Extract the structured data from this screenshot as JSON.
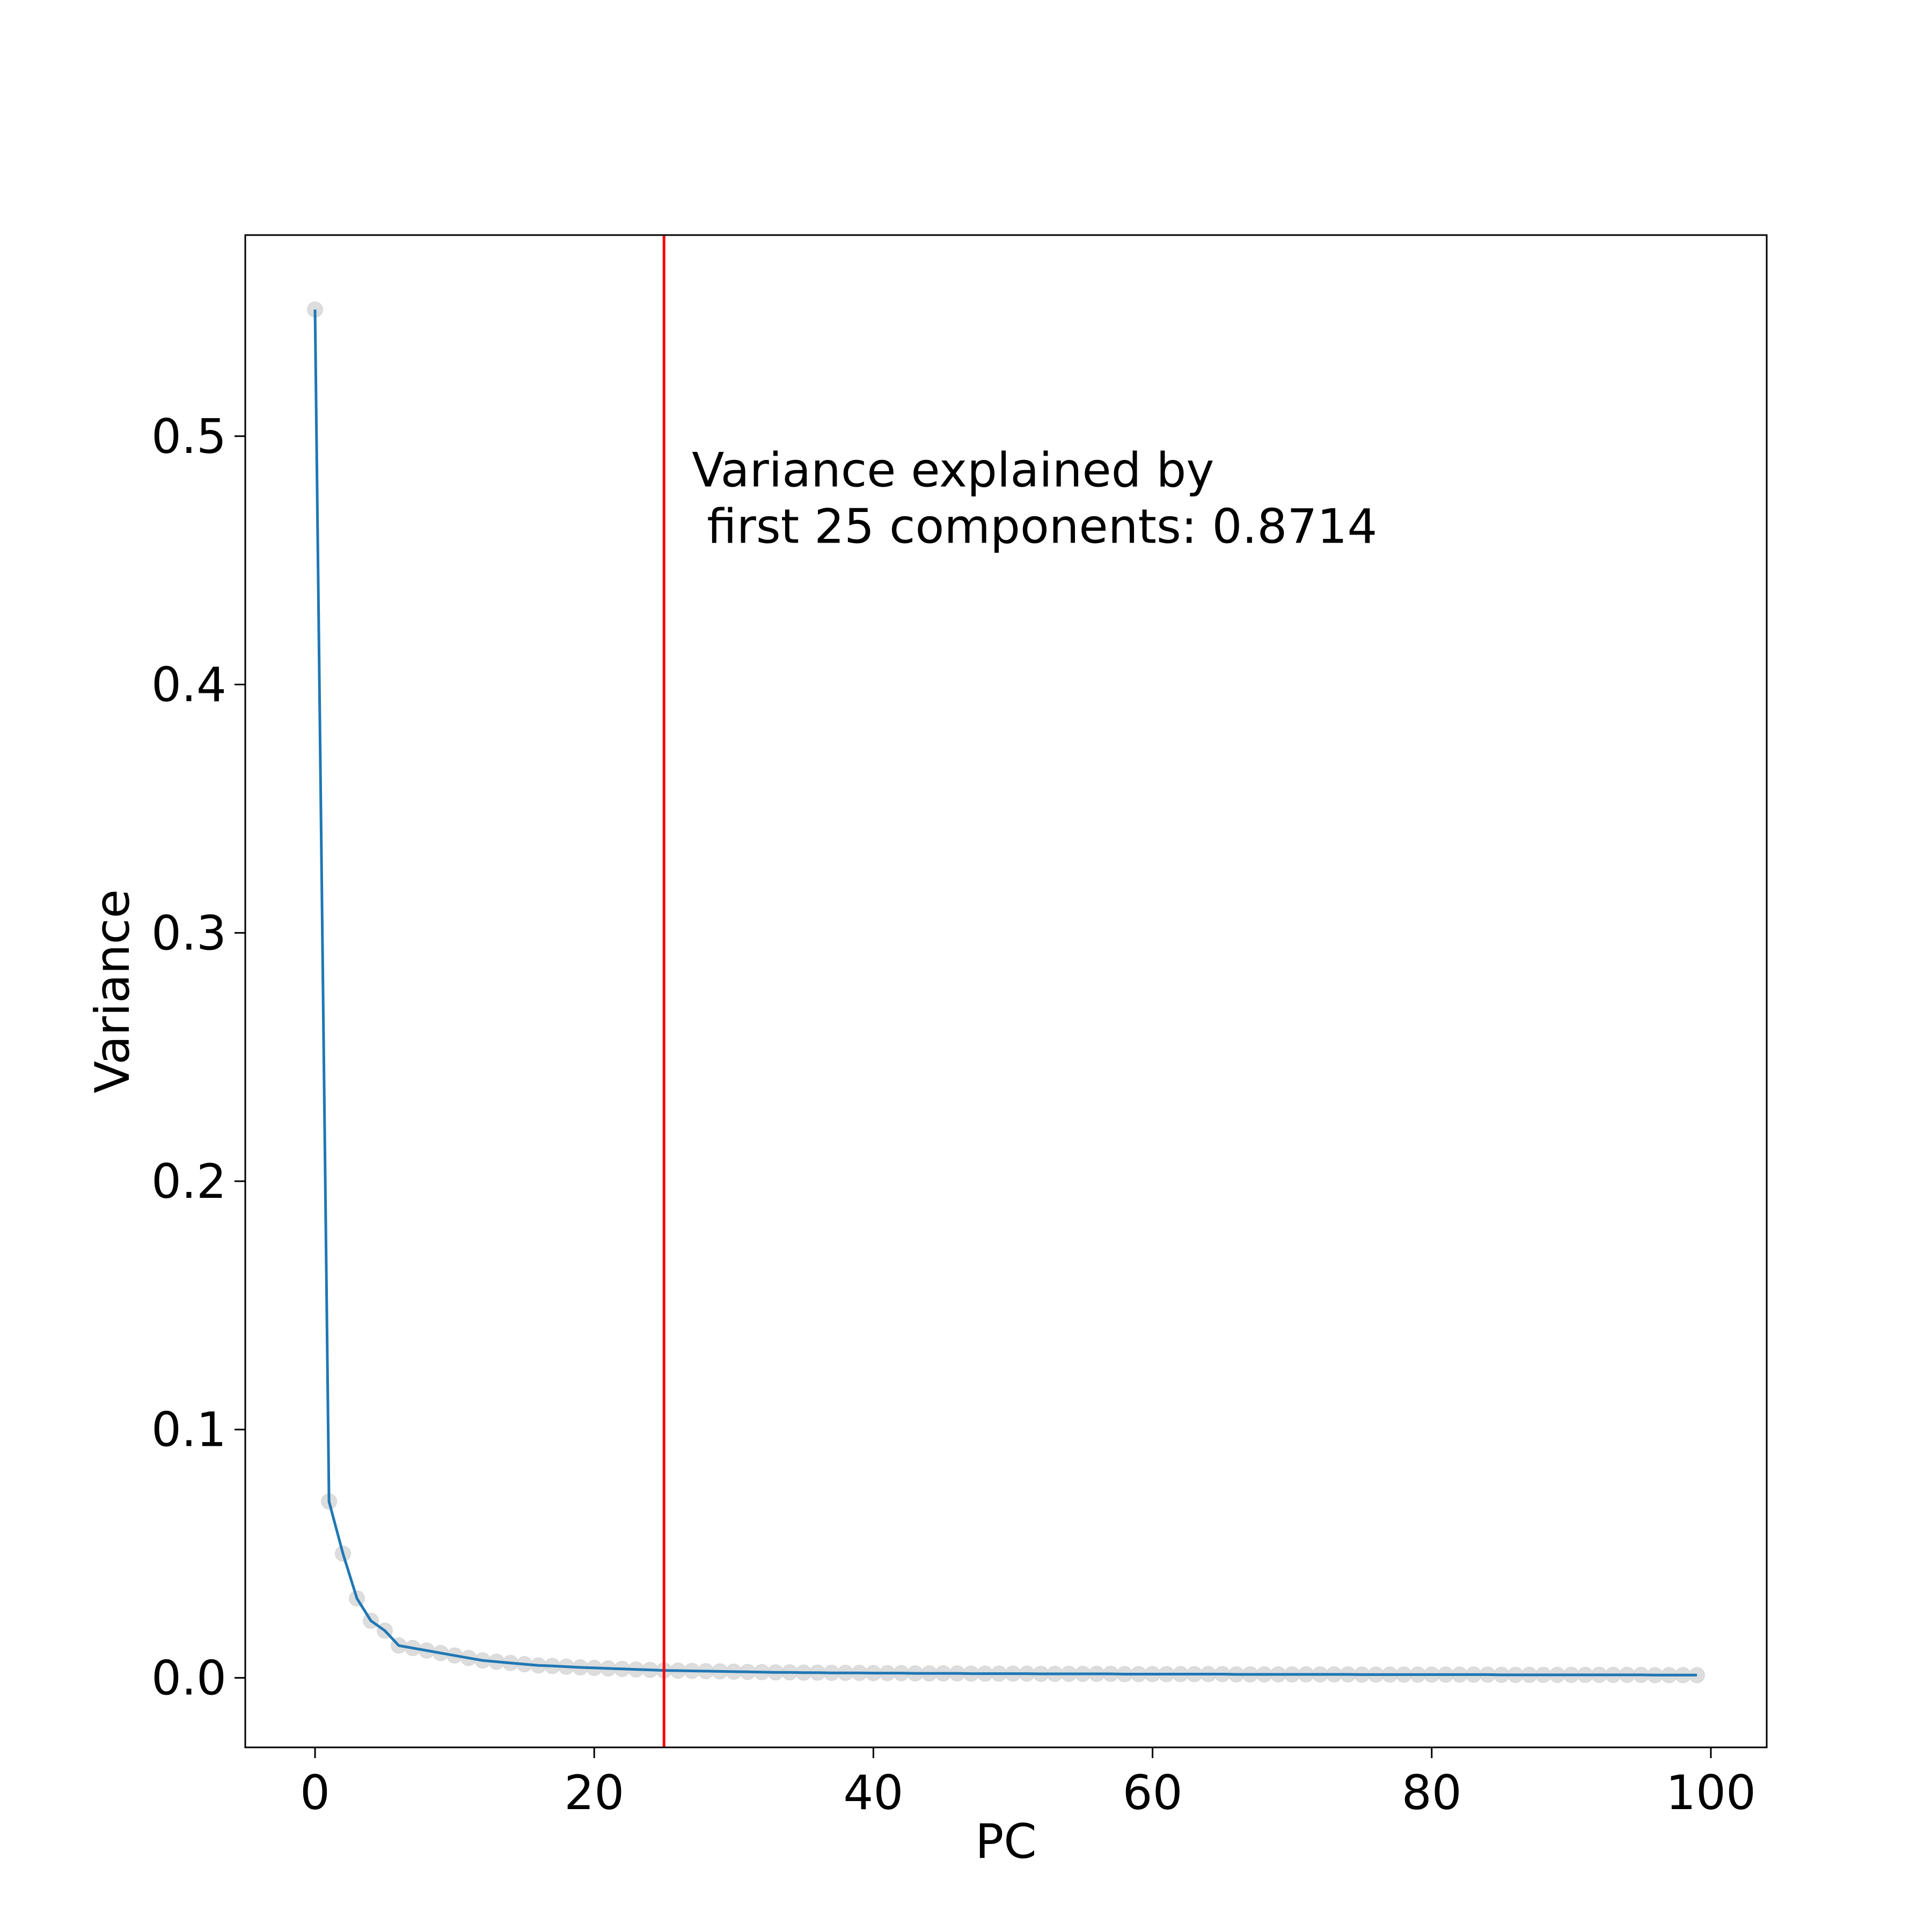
{
  "chart_data": {
    "type": "line",
    "title": "",
    "xlabel": "PC",
    "ylabel": "Variance",
    "xlim": [
      -5,
      104
    ],
    "ylim": [
      -0.028,
      0.581
    ],
    "xticks": [
      0,
      20,
      40,
      60,
      80,
      100
    ],
    "xtick_labels": [
      "0",
      "20",
      "40",
      "60",
      "80",
      "100"
    ],
    "yticks": [
      0.0,
      0.1,
      0.2,
      0.3,
      0.4,
      0.5
    ],
    "ytick_labels": [
      "0.0",
      "0.1",
      "0.2",
      "0.3",
      "0.4",
      "0.5"
    ],
    "grid": false,
    "legend": "none",
    "series": [
      {
        "color": "#1f77b4",
        "marker_color": "#d9d9d9",
        "x": [
          0,
          1,
          2,
          3,
          4,
          5,
          6,
          7,
          8,
          9,
          10,
          11,
          12,
          13,
          14,
          15,
          16,
          17,
          18,
          19,
          20,
          21,
          22,
          23,
          24,
          25,
          26,
          27,
          28,
          29,
          30,
          31,
          32,
          33,
          34,
          35,
          36,
          37,
          38,
          39,
          40,
          41,
          42,
          43,
          44,
          45,
          46,
          47,
          48,
          49,
          50,
          51,
          52,
          53,
          54,
          55,
          56,
          57,
          58,
          59,
          60,
          61,
          62,
          63,
          64,
          65,
          66,
          67,
          68,
          69,
          70,
          71,
          72,
          73,
          74,
          75,
          76,
          77,
          78,
          79,
          80,
          81,
          82,
          83,
          84,
          85,
          86,
          87,
          88,
          89,
          90,
          91,
          92,
          93,
          94,
          95,
          96,
          97,
          98,
          99
        ],
        "values": [
          0.551,
          0.071,
          0.05,
          0.032,
          0.023,
          0.019,
          0.013,
          0.012,
          0.011,
          0.01,
          0.009,
          0.008,
          0.007,
          0.0065,
          0.006,
          0.0055,
          0.005,
          0.0048,
          0.0045,
          0.0042,
          0.004,
          0.0038,
          0.0036,
          0.0034,
          0.0032,
          0.003,
          0.0029,
          0.0028,
          0.0027,
          0.0026,
          0.0025,
          0.0024,
          0.0023,
          0.0022,
          0.0022,
          0.0021,
          0.0021,
          0.002,
          0.002,
          0.002,
          0.0019,
          0.0019,
          0.0019,
          0.0018,
          0.0018,
          0.0018,
          0.0018,
          0.0017,
          0.0017,
          0.0017,
          0.0017,
          0.0017,
          0.0016,
          0.0016,
          0.0016,
          0.0016,
          0.0016,
          0.0016,
          0.0015,
          0.0015,
          0.0015,
          0.0015,
          0.0015,
          0.0015,
          0.0015,
          0.0015,
          0.0014,
          0.0014,
          0.0014,
          0.0014,
          0.0014,
          0.0014,
          0.0014,
          0.0014,
          0.0014,
          0.0013,
          0.0013,
          0.0013,
          0.0013,
          0.0013,
          0.0013,
          0.0013,
          0.0013,
          0.0013,
          0.0013,
          0.0012,
          0.0012,
          0.0012,
          0.0012,
          0.0012,
          0.0012,
          0.0012,
          0.0012,
          0.0012,
          0.0012,
          0.0012,
          0.0011,
          0.0011,
          0.0011,
          0.0011
        ]
      }
    ],
    "vline": {
      "x": 25,
      "color": "#ff0000"
    },
    "annotation": {
      "x": 27,
      "y": 0.47,
      "lines": [
        "Variance explained by",
        " first 25 components: 0.8714"
      ]
    }
  }
}
